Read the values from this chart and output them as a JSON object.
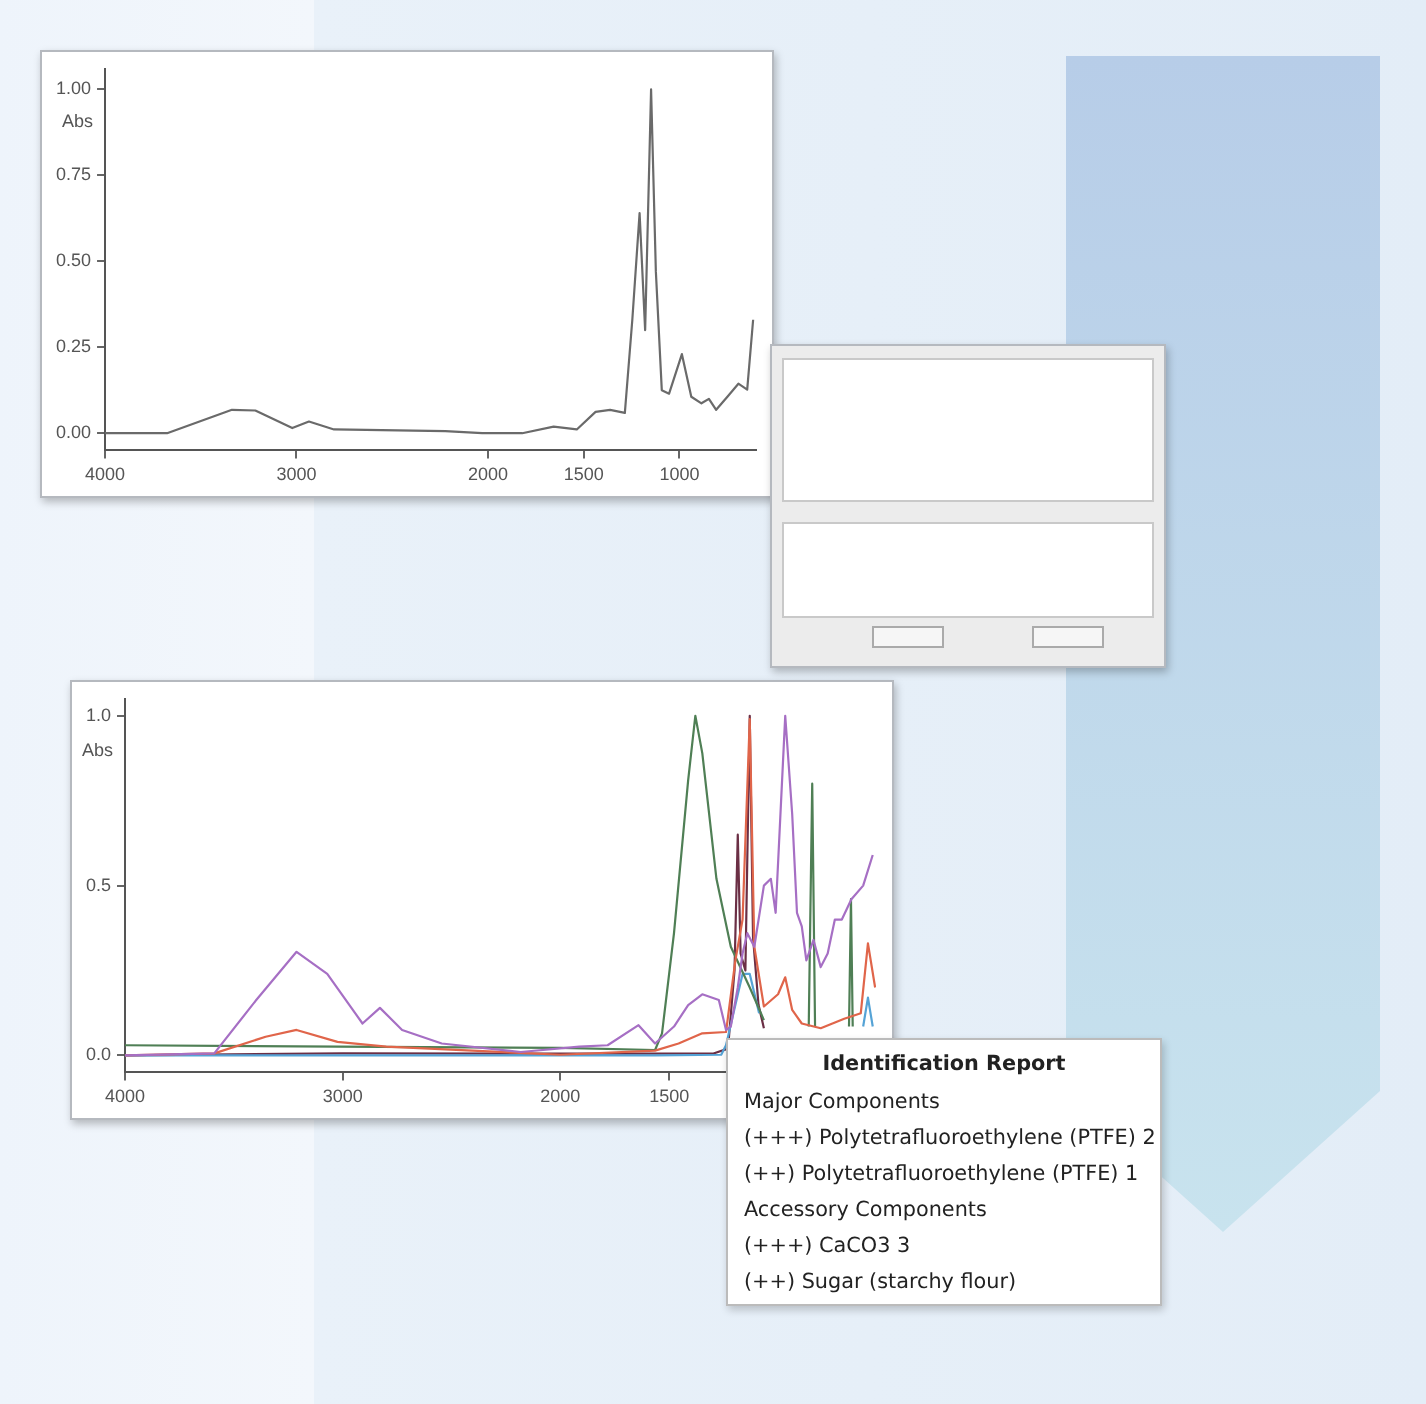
{
  "chart_data": [
    {
      "type": "line",
      "ylabel": "Abs",
      "xlim": [
        4000,
        600
      ],
      "ylim": [
        -0.05,
        1.06
      ],
      "xticks": [
        4000,
        3000,
        2000,
        1500,
        1000
      ],
      "yticks": [
        {
          "value": 0,
          "label": "0.00"
        },
        {
          "value": 0.25,
          "label": "0.25"
        },
        {
          "value": 0.5,
          "label": "0.50"
        },
        {
          "value": 0.75,
          "label": "0.75"
        },
        {
          "value": 1,
          "label": "1.00"
        }
      ],
      "grid": false,
      "legend": false,
      "series": [
        {
          "color": "#6a6a6a",
          "x": [
            4000,
            3676,
            3337,
            3215,
            3022,
            2935,
            2804,
            2223,
            2030,
            1821,
            1657,
            1536,
            1438,
            1362,
            1285,
            1246,
            1208,
            1179,
            1148,
            1123,
            1092,
            1054,
            987,
            938,
            885,
            846,
            808,
            746,
            692,
            646,
            615
          ],
          "values": [
            0,
            0,
            0.068,
            0.066,
            0.015,
            0.034,
            0.011,
            0.006,
            0,
            0,
            0.019,
            0.011,
            0.062,
            0.068,
            0.059,
            0.33,
            0.64,
            0.3,
            1.0,
            0.47,
            0.125,
            0.115,
            0.23,
            0.106,
            0.087,
            0.1,
            0.068,
            0.108,
            0.144,
            0.127,
            0.33
          ]
        }
      ]
    },
    {
      "type": "line",
      "ylabel": "Abs",
      "xlim": [
        4000,
        550
      ],
      "ylim": [
        -0.05,
        1.05
      ],
      "xticks": [
        4000,
        3000,
        2000,
        1500
      ],
      "yticks": [
        {
          "value": 0,
          "label": "0.0"
        },
        {
          "value": 0.5,
          "label": "0.5"
        },
        {
          "value": 1,
          "label": "1.0"
        }
      ],
      "grid": false,
      "legend": false,
      "series": [
        {
          "color": "#a66fc4",
          "x": [
            4000,
            3590,
            3401,
            3212,
            3071,
            2909,
            2829,
            2727,
            2545,
            2182,
            1913,
            1783,
            1641,
            1565,
            1478,
            1413,
            1348,
            1272,
            1239,
            1217,
            1185,
            1163,
            1141,
            1109,
            1065,
            1033,
            1011,
            967,
            935,
            913,
            891,
            870,
            837,
            804,
            772,
            739,
            707,
            663,
            609,
            565
          ],
          "values": [
            0,
            0.006,
            0.16,
            0.305,
            0.24,
            0.094,
            0.14,
            0.075,
            0.035,
            0.01,
            0.026,
            0.03,
            0.089,
            0.035,
            0.085,
            0.148,
            0.18,
            0.163,
            0.075,
            0.085,
            0.2,
            0.3,
            0.36,
            0.32,
            0.5,
            0.52,
            0.42,
            1.0,
            0.71,
            0.42,
            0.38,
            0.28,
            0.34,
            0.26,
            0.3,
            0.4,
            0.4,
            0.46,
            0.5,
            0.59
          ]
        },
        {
          "color": "#e0654a",
          "x": [
            4000,
            3590,
            3354,
            3212,
            3024,
            2800,
            2000,
            1565,
            1457,
            1348,
            1239,
            1196,
            1163,
            1130,
            1109,
            1065,
            1000,
            967,
            935,
            891,
            804,
            696,
            620,
            587,
            554
          ],
          "values": [
            0,
            0.006,
            0.055,
            0.075,
            0.04,
            0.026,
            0.002,
            0.014,
            0.035,
            0.065,
            0.069,
            0.28,
            0.4,
            0.99,
            0.32,
            0.144,
            0.18,
            0.23,
            0.134,
            0.094,
            0.08,
            0.108,
            0.124,
            0.33,
            0.2
          ]
        },
        {
          "color": "#4f7f55",
          "x": [
            4000,
            2000,
            1565,
            1533,
            1478,
            1413,
            1380,
            1348,
            1283,
            1217,
            1130,
            1065,
            950,
            859,
            843,
            830,
            750,
            674,
            665,
            657
          ],
          "values": [
            0.03,
            0.022,
            0.016,
            0.065,
            0.36,
            0.81,
            1.0,
            0.89,
            0.52,
            0.32,
            0.2,
            0.104,
            null,
            0.085,
            0.8,
            0.085,
            null,
            0.085,
            0.46,
            0.085
          ]
        },
        {
          "color": "#55a3d6",
          "x": [
            4000,
            1565,
            1261,
            1239,
            1163,
            1130,
            1087,
            850,
            609,
            587,
            565
          ],
          "values": [
            0,
            0,
            0.002,
            0.03,
            0.24,
            0.24,
            0.124,
            null,
            0.085,
            0.17,
            0.085
          ]
        },
        {
          "color": "#6b2f45",
          "x": [
            4000,
            3000,
            2000,
            1300,
            1230,
            1200,
            1185,
            1172,
            1150,
            1130,
            1115,
            1090,
            1065
          ],
          "values": [
            0,
            0.006,
            0.005,
            0.005,
            0.02,
            0.25,
            0.65,
            0.3,
            0.25,
            1.0,
            0.35,
            0.15,
            0.08
          ]
        }
      ]
    },
    {
      "type": "other",
      "title": "Identification Report",
      "annotations": [
        "Major Components",
        "(+++) Polytetrafluoroethylene (PTFE) 2",
        "(++) Polytetrafluoroethylene (PTFE) 1",
        "Accessory Components",
        "(+++) CaCO3 3",
        "(++) Sugar (starchy flour)"
      ]
    }
  ]
}
